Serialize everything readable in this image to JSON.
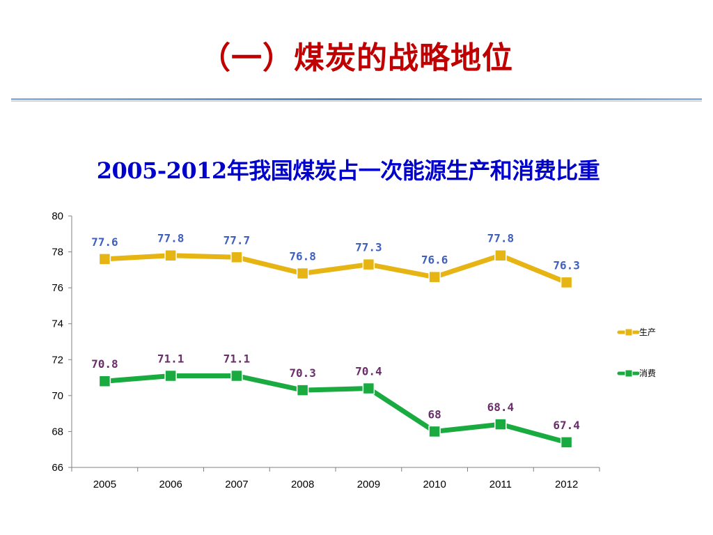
{
  "slide": {
    "title": "（一）煤炭的战略地位"
  },
  "chart_data": {
    "type": "line",
    "title": "2005-2012年我国煤炭占一次能源生产和消费比重",
    "categories": [
      "2005",
      "2006",
      "2007",
      "2008",
      "2009",
      "2010",
      "2011",
      "2012"
    ],
    "ylim": [
      66,
      80
    ],
    "yticks": [
      "66",
      "68",
      "70",
      "72",
      "74",
      "76",
      "78",
      "80"
    ],
    "xlabel": "",
    "ylabel": "",
    "grid": false,
    "legend": "right",
    "series": [
      {
        "name": "生产",
        "values": [
          77.6,
          77.8,
          77.7,
          76.8,
          77.3,
          76.6,
          77.8,
          76.3
        ],
        "labels": [
          "77.6",
          "77.8",
          "77.7",
          "76.8",
          "77.3",
          "76.6",
          "77.8",
          "76.3"
        ],
        "color": "#e6b413",
        "label_color": "#3f5fbf"
      },
      {
        "name": "消费",
        "values": [
          70.8,
          71.1,
          71.1,
          70.3,
          70.4,
          68,
          68.4,
          67.4
        ],
        "labels": [
          "70.8",
          "71.1",
          "71.1",
          "70.3",
          "70.4",
          "68",
          "68.4",
          "67.4"
        ],
        "color": "#1aab40",
        "label_color": "#6a2e6a"
      }
    ]
  }
}
